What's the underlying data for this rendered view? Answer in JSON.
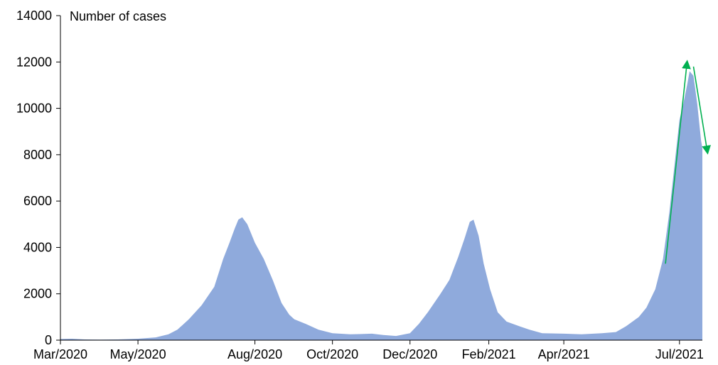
{
  "chart_data": {
    "type": "area",
    "ylabel": "Number of cases",
    "ylim": [
      0,
      14000
    ],
    "y_ticks": [
      0,
      2000,
      4000,
      6000,
      8000,
      10000,
      12000,
      14000
    ],
    "x_tick_labels": [
      "Mar/2020",
      "May/2020",
      "Aug/2020",
      "Oct/2020",
      "Dec/2020",
      "Feb/2021",
      "Apr/2021",
      "Jul/2021"
    ],
    "x_tick_dates": [
      "2020-03-01",
      "2020-05-01",
      "2020-08-01",
      "2020-10-01",
      "2020-12-01",
      "2021-02-01",
      "2021-04-01",
      "2021-07-01"
    ],
    "xlim": [
      "2020-03-01",
      "2021-07-19"
    ],
    "series": [
      {
        "color": "#8faadc",
        "points": [
          [
            "2020-03-01",
            50
          ],
          [
            "2020-03-10",
            60
          ],
          [
            "2020-03-20",
            30
          ],
          [
            "2020-04-01",
            20
          ],
          [
            "2020-04-15",
            30
          ],
          [
            "2020-05-01",
            60
          ],
          [
            "2020-05-15",
            120
          ],
          [
            "2020-05-25",
            250
          ],
          [
            "2020-06-01",
            450
          ],
          [
            "2020-06-10",
            900
          ],
          [
            "2020-06-20",
            1500
          ],
          [
            "2020-06-30",
            2300
          ],
          [
            "2020-07-07",
            3500
          ],
          [
            "2020-07-12",
            4200
          ],
          [
            "2020-07-16",
            4800
          ],
          [
            "2020-07-19",
            5200
          ],
          [
            "2020-07-22",
            5300
          ],
          [
            "2020-07-26",
            5000
          ],
          [
            "2020-08-01",
            4200
          ],
          [
            "2020-08-08",
            3500
          ],
          [
            "2020-08-15",
            2600
          ],
          [
            "2020-08-22",
            1600
          ],
          [
            "2020-08-28",
            1100
          ],
          [
            "2020-09-01",
            900
          ],
          [
            "2020-09-10",
            700
          ],
          [
            "2020-09-20",
            450
          ],
          [
            "2020-10-01",
            300
          ],
          [
            "2020-10-15",
            250
          ],
          [
            "2020-11-01",
            280
          ],
          [
            "2020-11-10",
            220
          ],
          [
            "2020-11-20",
            180
          ],
          [
            "2020-12-01",
            300
          ],
          [
            "2020-12-08",
            700
          ],
          [
            "2020-12-15",
            1200
          ],
          [
            "2020-12-25",
            2000
          ],
          [
            "2021-01-01",
            2600
          ],
          [
            "2021-01-08",
            3600
          ],
          [
            "2021-01-13",
            4400
          ],
          [
            "2021-01-17",
            5100
          ],
          [
            "2021-01-20",
            5200
          ],
          [
            "2021-01-24",
            4500
          ],
          [
            "2021-01-28",
            3300
          ],
          [
            "2021-02-02",
            2200
          ],
          [
            "2021-02-08",
            1200
          ],
          [
            "2021-02-15",
            800
          ],
          [
            "2021-02-25",
            600
          ],
          [
            "2021-03-05",
            450
          ],
          [
            "2021-03-15",
            300
          ],
          [
            "2021-04-01",
            280
          ],
          [
            "2021-04-15",
            250
          ],
          [
            "2021-05-01",
            300
          ],
          [
            "2021-05-12",
            350
          ],
          [
            "2021-05-20",
            600
          ],
          [
            "2021-05-30",
            1000
          ],
          [
            "2021-06-05",
            1400
          ],
          [
            "2021-06-12",
            2200
          ],
          [
            "2021-06-18",
            3500
          ],
          [
            "2021-06-23",
            5500
          ],
          [
            "2021-06-28",
            8000
          ],
          [
            "2021-07-01",
            9500
          ],
          [
            "2021-07-04",
            10200
          ],
          [
            "2021-07-07",
            11000
          ],
          [
            "2021-07-09",
            11600
          ],
          [
            "2021-07-12",
            11400
          ],
          [
            "2021-07-15",
            10200
          ],
          [
            "2021-07-18",
            8600
          ],
          [
            "2021-07-19",
            8300
          ]
        ]
      }
    ],
    "annotations": [
      {
        "type": "arrow",
        "color": "#00b050",
        "from": [
          "2021-06-20",
          3300
        ],
        "to": [
          "2021-07-07",
          12000
        ]
      },
      {
        "type": "arrow",
        "color": "#00b050",
        "from": [
          "2021-07-12",
          11800
        ],
        "to": [
          "2021-07-23",
          8100
        ]
      }
    ],
    "grid": false
  }
}
